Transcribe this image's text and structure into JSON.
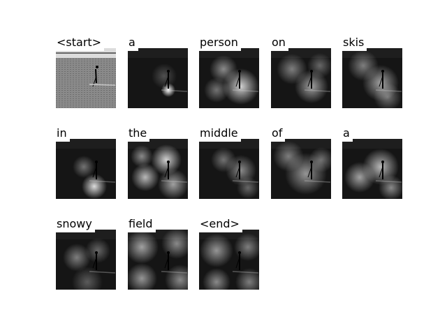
{
  "caption_tokens": [
    {
      "word": "<start>"
    },
    {
      "word": "a"
    },
    {
      "word": "person"
    },
    {
      "word": "on"
    },
    {
      "word": "skis"
    },
    {
      "word": "in"
    },
    {
      "word": "the"
    },
    {
      "word": "middle"
    },
    {
      "word": "of"
    },
    {
      "word": "a"
    },
    {
      "word": "snowy"
    },
    {
      "word": "field"
    },
    {
      "word": "<end>"
    }
  ]
}
